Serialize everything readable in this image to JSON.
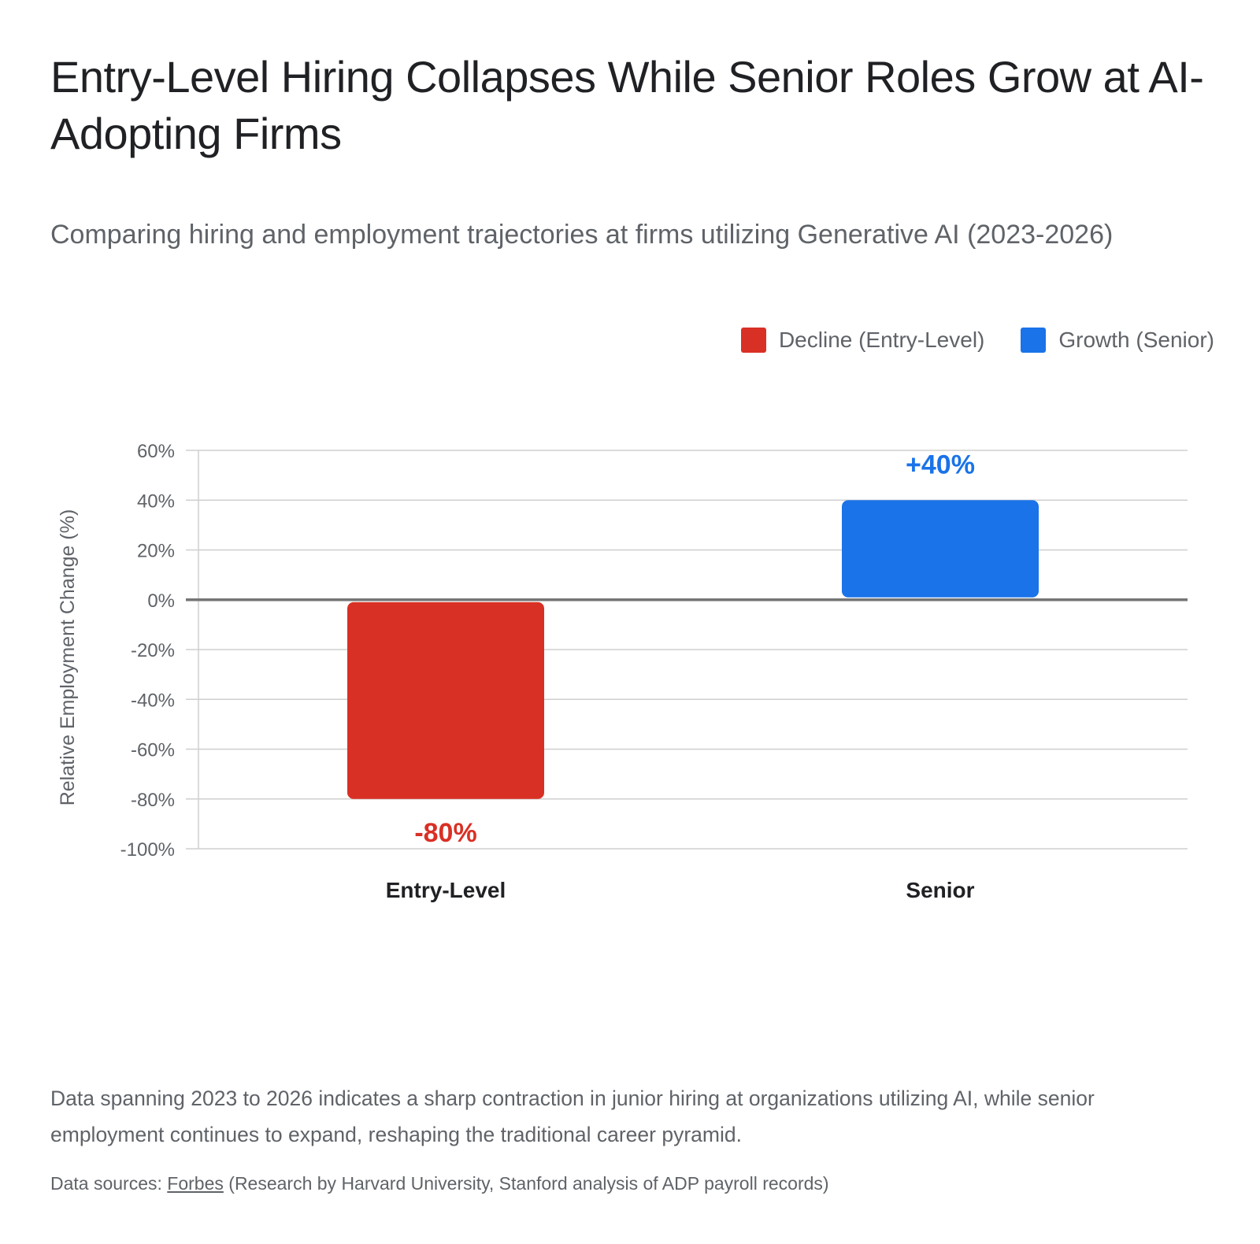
{
  "header": {
    "title": "Entry-Level Hiring Collapses While Senior Roles Grow at AI-Adopting Firms",
    "subtitle": "Comparing hiring and employment trajectories at firms utilizing Generative AI (2023-2026)"
  },
  "legend": [
    {
      "label": "Decline (Entry-Level)",
      "color": "#d93025"
    },
    {
      "label": "Growth (Senior)",
      "color": "#1a73e8"
    }
  ],
  "chart_data": {
    "type": "bar",
    "categories": [
      "Entry-Level",
      "Senior"
    ],
    "values": [
      -80,
      40
    ],
    "data_labels": [
      "-80%",
      "+40%"
    ],
    "colors": [
      "#d93025",
      "#1a73e8"
    ],
    "ylabel": "Relative Employment Change (%)",
    "xlabel": "",
    "ylim": [
      -100,
      60
    ],
    "yticks": [
      60,
      40,
      20,
      0,
      -20,
      -40,
      -60,
      -80,
      -100
    ],
    "ytick_labels": [
      "60%",
      "40%",
      "20%",
      "0%",
      "-20%",
      "-40%",
      "-60%",
      "-80%",
      "-100%"
    ],
    "grid": true,
    "legend_position": "top-right"
  },
  "footer": {
    "description": "Data spanning 2023 to 2026 indicates a sharp contraction in junior hiring at organizations utilizing AI, while senior employment continues to expand, reshaping the traditional career pyramid.",
    "sources_prefix": "Data sources: ",
    "sources_link": "Forbes",
    "sources_suffix": " (Research by Harvard University, Stanford analysis of ADP payroll records)"
  }
}
